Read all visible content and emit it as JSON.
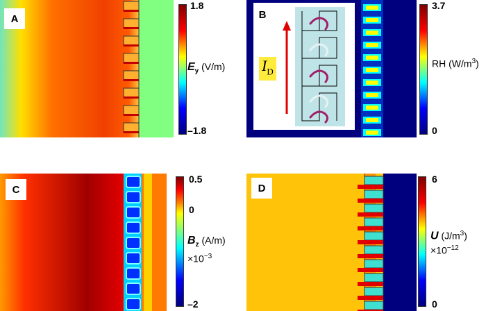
{
  "panels": [
    {
      "id": "A",
      "label": "A",
      "max": "1.8",
      "min": "–1.8",
      "quantity": "E",
      "quantity_sub": "y",
      "unit": "(V/m)"
    },
    {
      "id": "B",
      "label": "B",
      "max": "3.7",
      "min": "0",
      "quantity": "RH",
      "unit": "(W/m",
      "unit_sup": "3",
      "unit_end": ")",
      "inset_symbol": "I",
      "inset_sub": "D"
    },
    {
      "id": "C",
      "label": "C",
      "max": "0.5",
      "mid": "0",
      "min": "–2",
      "quantity": "B",
      "quantity_sub": "z",
      "unit": "(A/m)",
      "scale": "×10",
      "scale_sup": "−3"
    },
    {
      "id": "D",
      "label": "D",
      "max": "6",
      "min": "0",
      "quantity": "U",
      "unit": "(J/m",
      "unit_sup": "3",
      "unit_end": ")",
      "scale": "×10",
      "scale_sup": "−12"
    }
  ],
  "colors": {
    "blue": "#00007f",
    "cyan": "#00ffff",
    "green": "#80ff80",
    "yellow": "#ffff00",
    "orange": "#ff8000",
    "red": "#ff0000",
    "darkred": "#7f0000",
    "light_teal": "#bfe4e8",
    "arrow_red": "#e00000",
    "highlight": "#ffeb3b"
  }
}
